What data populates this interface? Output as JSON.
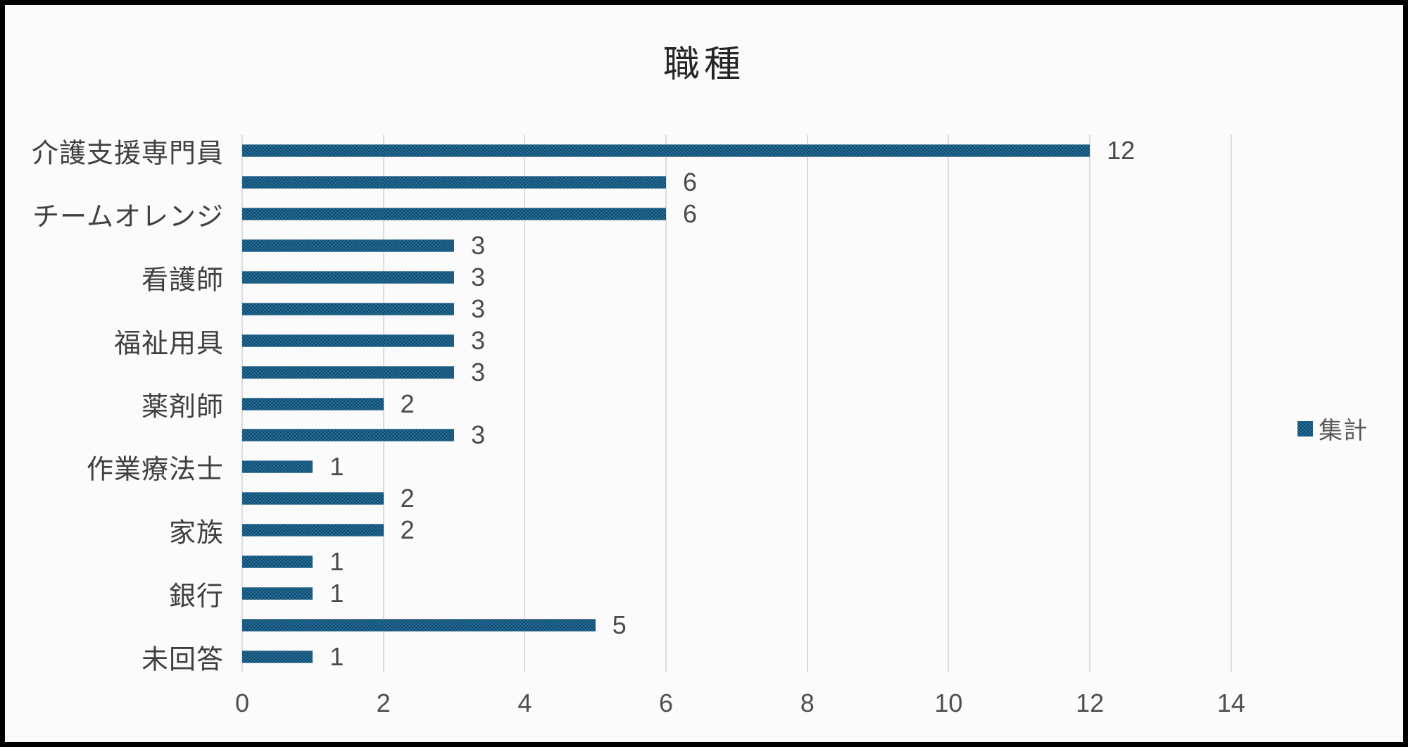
{
  "chart_data": {
    "type": "bar",
    "orientation": "horizontal",
    "title": "職種",
    "series_name": "集計",
    "categories": [
      "介護支援専門員",
      "",
      "チームオレンジ",
      "",
      "看護師",
      "",
      "福祉用具",
      "",
      "薬剤師",
      "",
      "作業療法士",
      "",
      "家族",
      "",
      "銀行",
      "",
      "未回答"
    ],
    "values": [
      12,
      6,
      6,
      3,
      3,
      3,
      3,
      3,
      2,
      3,
      1,
      2,
      2,
      1,
      1,
      5,
      1
    ],
    "x_ticks": [
      "0",
      "2",
      "4",
      "6",
      "8",
      "10",
      "12",
      "14"
    ],
    "x_tick_values": [
      0,
      2,
      4,
      6,
      8,
      10,
      12,
      14
    ],
    "xlim": [
      0,
      14.6
    ],
    "grid": "vertical",
    "legend_position": "right",
    "data_labels": true
  },
  "colors": {
    "bar": "#2173A2",
    "bar_pattern_dot": "#0E283A",
    "gridline": "#DCDCDC",
    "title_text": "#262626",
    "category_text": "#404040",
    "value_text": "#4A4A4A",
    "tick_text": "#4F4F4F",
    "legend_text": "#595959",
    "background": "#FBFBFB",
    "frame": "#000000"
  }
}
